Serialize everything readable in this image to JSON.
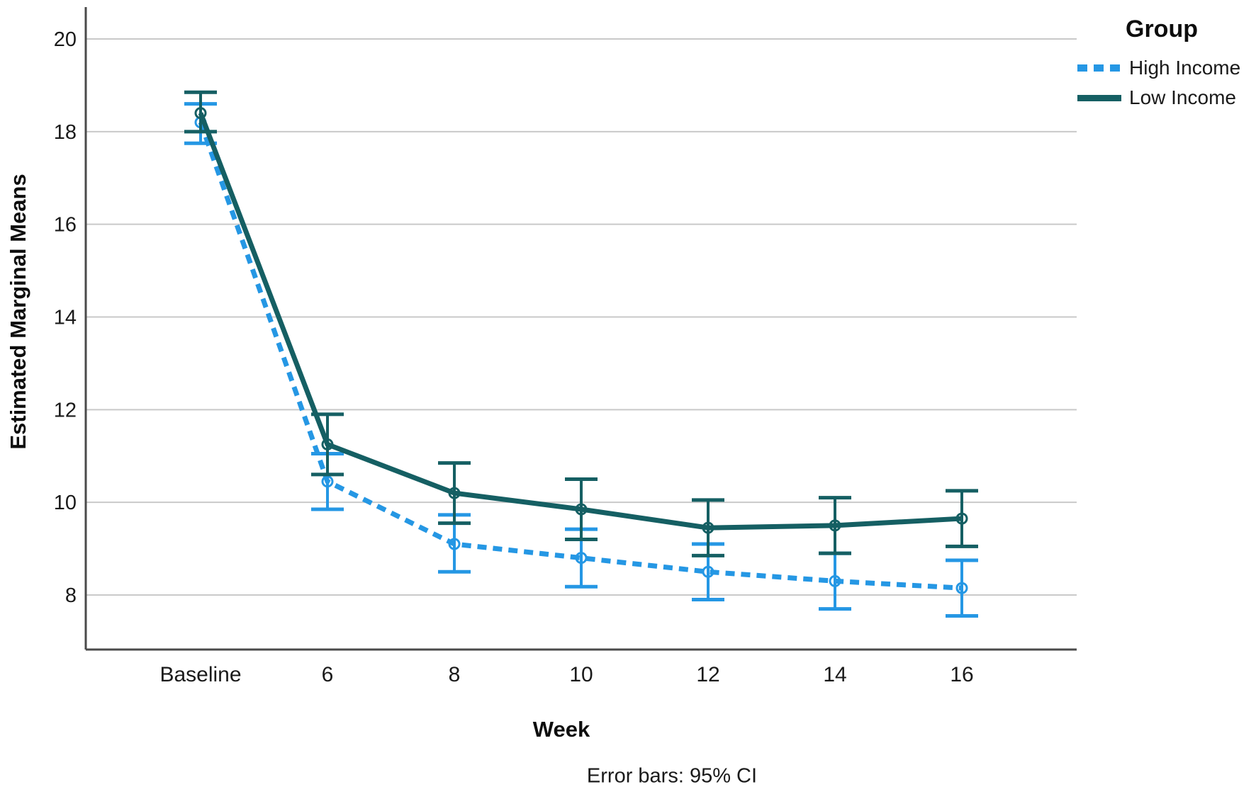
{
  "chart_data": {
    "type": "line",
    "title": "",
    "xlabel": "Week",
    "ylabel": "Estimated Marginal Means",
    "footnote": "Error bars: 95% CI",
    "legend_title": "Group",
    "legend_position": "top-right-outside",
    "grid": true,
    "categories": [
      "Baseline",
      "6",
      "8",
      "10",
      "12",
      "14",
      "16"
    ],
    "y_ticks": [
      20,
      18,
      16,
      14,
      12,
      10,
      8
    ],
    "ylim": [
      6.8,
      20.7
    ],
    "colors": {
      "grid": "#c9c9c9",
      "axis": "#4a4a4a",
      "text": "#1a1a1a"
    },
    "series": [
      {
        "name": "High Income",
        "style": "dotted",
        "color": "#2597e4",
        "marker": "circle-open",
        "means": [
          18.2,
          10.45,
          9.1,
          8.8,
          8.5,
          8.3,
          8.15
        ],
        "ci_low": [
          17.75,
          9.85,
          8.5,
          8.18,
          7.9,
          7.7,
          7.55
        ],
        "ci_high": [
          18.6,
          11.05,
          9.73,
          9.42,
          9.1,
          8.9,
          8.75
        ]
      },
      {
        "name": "Low Income",
        "style": "solid",
        "color": "#155f63",
        "marker": "circle-open",
        "means": [
          18.4,
          11.25,
          10.2,
          9.85,
          9.45,
          9.5,
          9.65
        ],
        "ci_low": [
          18.0,
          10.6,
          9.55,
          9.2,
          8.85,
          8.9,
          9.05
        ],
        "ci_high": [
          18.85,
          11.9,
          10.85,
          10.5,
          10.05,
          10.1,
          10.25
        ]
      }
    ]
  }
}
